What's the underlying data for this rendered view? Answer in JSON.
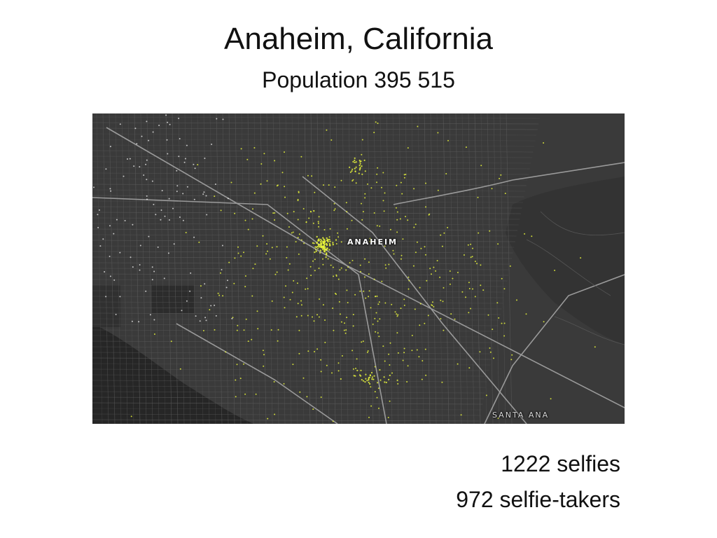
{
  "title": "Anaheim, California",
  "subtitle": "Population 395 515",
  "map": {
    "labels": {
      "city": "ANAHEIM",
      "neighbor": "SANTA ANA"
    },
    "colors": {
      "land": "#3a3a3a",
      "ocean": "#262626",
      "streets": "#6a6a6a",
      "highways": "#9a9a9a",
      "selfie_points": "#e8f53a",
      "other_points": "#ffffff"
    }
  },
  "stats": {
    "selfies": "1222 selfies",
    "selfie_takers": "972 selfie-takers"
  }
}
